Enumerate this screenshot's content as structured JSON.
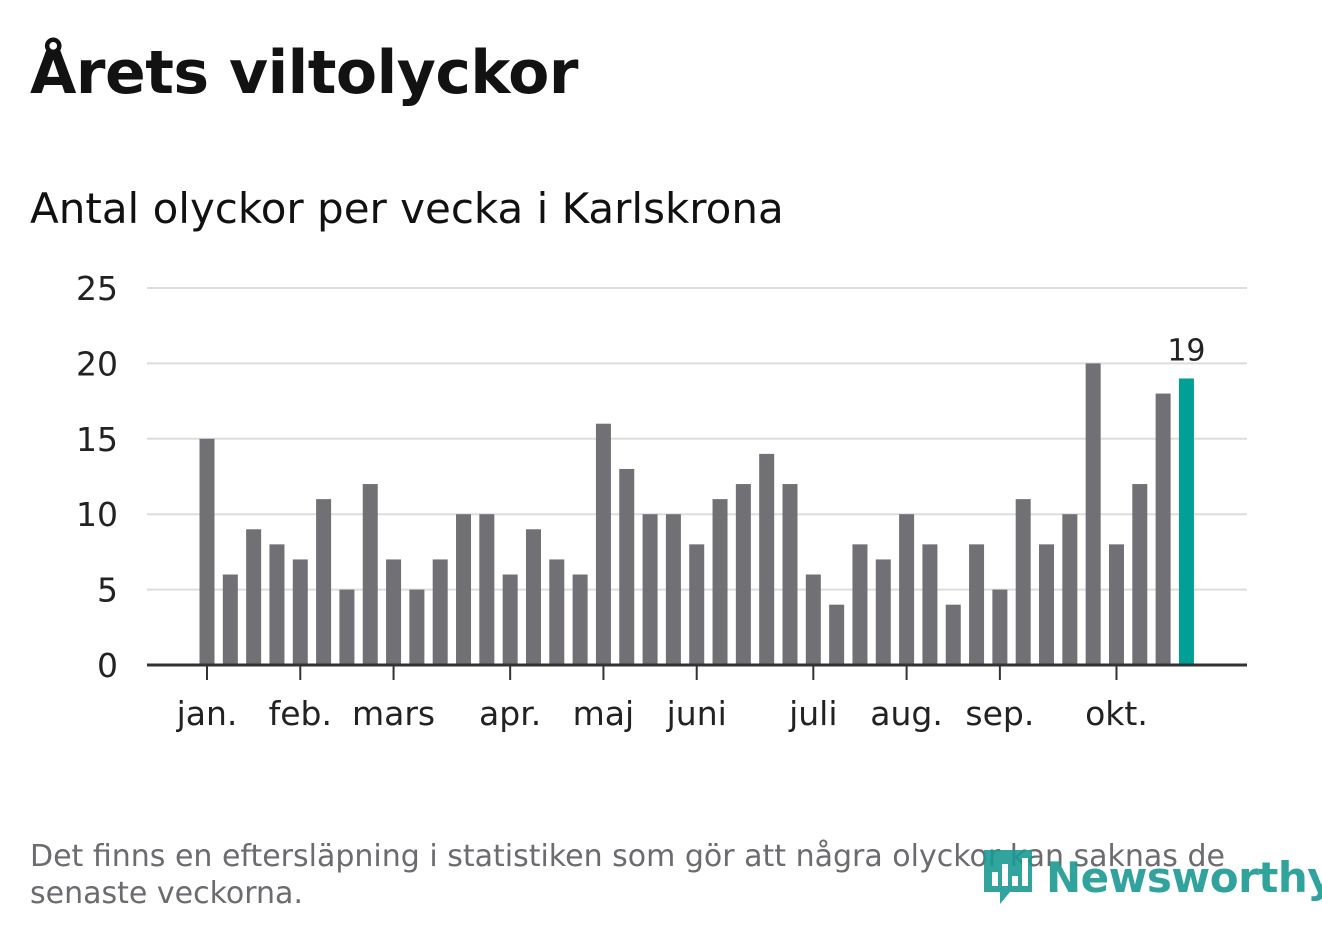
{
  "title": "Årets viltolyckor",
  "subtitle": "Antal olyckor per vecka i Karlskrona",
  "footnote": "Det finns en eftersläpning i statistiken som gör att några olyckor kan saknas de senaste veckorna.",
  "logo": {
    "text": "Newsworthy",
    "icon": "bar-chart-speech-bubble-icon"
  },
  "colors": {
    "bar": "#707075",
    "highlight": "#00a097",
    "grid": "#dddddd",
    "axis": "#333333",
    "brand": "#1a9a92"
  },
  "chart_data": {
    "type": "bar",
    "title": "Antal olyckor per vecka i Karlskrona",
    "xlabel": "",
    "ylabel": "",
    "ylim": [
      0,
      25
    ],
    "yticks": [
      0,
      5,
      10,
      15,
      20,
      25
    ],
    "grid": true,
    "weeks": [
      1,
      2,
      3,
      4,
      5,
      6,
      7,
      8,
      9,
      10,
      11,
      12,
      13,
      14,
      15,
      16,
      17,
      18,
      19,
      20,
      21,
      22,
      23,
      24,
      25,
      26,
      27,
      28,
      29,
      30,
      31,
      32,
      33,
      34,
      35,
      36,
      37,
      38,
      39,
      40,
      41,
      42,
      43
    ],
    "values": [
      15,
      6,
      9,
      8,
      7,
      11,
      5,
      12,
      7,
      5,
      7,
      10,
      10,
      6,
      9,
      7,
      6,
      16,
      13,
      10,
      10,
      8,
      11,
      12,
      14,
      12,
      6,
      4,
      8,
      7,
      10,
      8,
      4,
      8,
      5,
      11,
      8,
      10,
      20,
      8,
      12,
      18,
      19
    ],
    "highlight_index": 42,
    "highlight_label": "19",
    "month_ticks": [
      {
        "label": "jan.",
        "at_week": 1
      },
      {
        "label": "feb.",
        "at_week": 5
      },
      {
        "label": "mars",
        "at_week": 9
      },
      {
        "label": "apr.",
        "at_week": 14
      },
      {
        "label": "maj",
        "at_week": 18
      },
      {
        "label": "juni",
        "at_week": 22
      },
      {
        "label": "juli",
        "at_week": 27
      },
      {
        "label": "aug.",
        "at_week": 31
      },
      {
        "label": "sep.",
        "at_week": 35
      },
      {
        "label": "okt.",
        "at_week": 40
      }
    ]
  }
}
